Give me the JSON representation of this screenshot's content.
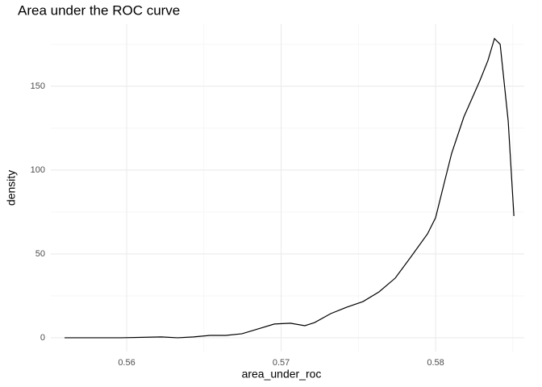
{
  "chart_data": {
    "type": "line",
    "title": "Area under the ROC curve",
    "x_label": "area_under_roc",
    "y_label": "density",
    "x": [
      0.55598,
      0.55755,
      0.55963,
      0.56225,
      0.5633,
      0.56433,
      0.56538,
      0.56642,
      0.56747,
      0.56851,
      0.56956,
      0.5706,
      0.57154,
      0.57217,
      0.57321,
      0.57426,
      0.5753,
      0.57634,
      0.57739,
      0.57843,
      0.57948,
      0.58,
      0.58052,
      0.58104,
      0.58183,
      0.58287,
      0.58339,
      0.58381,
      0.58418,
      0.5847,
      0.58507
    ],
    "series": [
      {
        "name": "density",
        "color": "#000000",
        "values": [
          0,
          0,
          0,
          0.5,
          0,
          0.5,
          1.4,
          1.4,
          2.4,
          5.3,
          8.2,
          8.7,
          7.2,
          9.1,
          14.4,
          18.3,
          21.6,
          27.4,
          35.6,
          48.6,
          62,
          71.6,
          90.9,
          110,
          131.7,
          153.4,
          165.4,
          178.4,
          175,
          129.3,
          72.6
        ]
      }
    ],
    "xlim": [
      0.55509,
      0.58574
    ],
    "xticks": [
      0.56,
      0.57,
      0.58
    ],
    "ylim": [
      -8.2,
      187
    ],
    "yticks": [
      0,
      50,
      100,
      150
    ],
    "grid": true
  }
}
